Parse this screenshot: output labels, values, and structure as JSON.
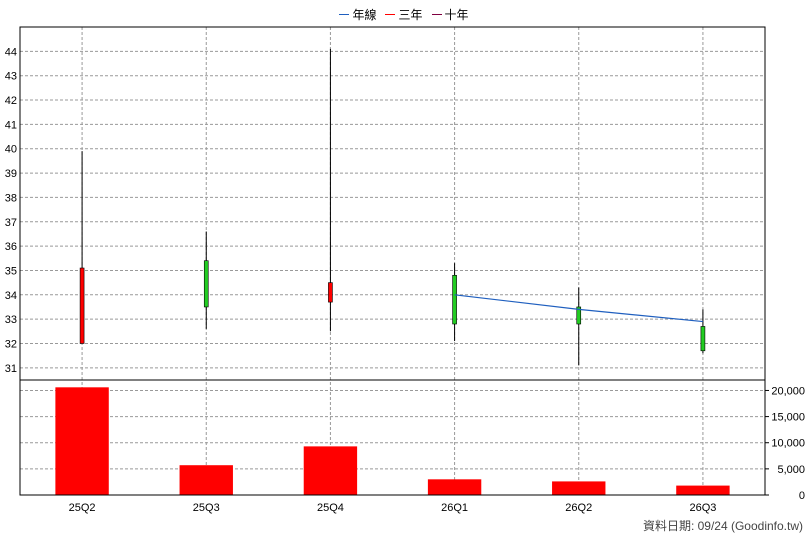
{
  "legend": [
    {
      "label": "年線",
      "color": "#1f5fbf"
    },
    {
      "label": "三年",
      "color": "#ff0000"
    },
    {
      "label": "十年",
      "color": "#800040"
    }
  ],
  "footer": {
    "note": "資料日期: 09/24  (Goodinfo.tw)"
  },
  "colors": {
    "up": "#ff0000",
    "down": "#22cc22",
    "volume": "#ff0000",
    "line": "#1f5fbf",
    "grid": "#999999"
  },
  "chart_data": [
    {
      "type": "candlestick",
      "categories": [
        "25Q2",
        "25Q3",
        "25Q4",
        "26Q1",
        "26Q2",
        "26Q3"
      ],
      "ohlc": [
        {
          "open": 32.0,
          "high": 39.9,
          "low": 32.0,
          "close": 35.1
        },
        {
          "open": 35.4,
          "high": 36.6,
          "low": 32.6,
          "close": 33.5
        },
        {
          "open": 33.7,
          "high": 44.1,
          "low": 32.5,
          "close": 34.5
        },
        {
          "open": 34.8,
          "high": 35.3,
          "low": 32.1,
          "close": 32.8
        },
        {
          "open": 33.5,
          "high": 34.3,
          "low": 31.1,
          "close": 32.8
        },
        {
          "open": 32.7,
          "high": 33.4,
          "low": 31.6,
          "close": 31.7
        }
      ],
      "series": [
        {
          "name": "年線",
          "values": [
            null,
            null,
            null,
            34.0,
            33.4,
            32.9
          ]
        }
      ],
      "yticks": [
        31,
        32,
        33,
        34,
        35,
        36,
        37,
        38,
        39,
        40,
        41,
        42,
        43,
        44
      ],
      "ylim": [
        30.5,
        45.0
      ],
      "grid": true
    },
    {
      "type": "bar",
      "categories": [
        "25Q2",
        "25Q3",
        "25Q4",
        "26Q1",
        "26Q2",
        "26Q3"
      ],
      "values": [
        20600,
        5700,
        9300,
        3000,
        2600,
        1800
      ],
      "yticks": [
        0,
        5000,
        10000,
        15000,
        20000
      ],
      "ytick_labels": [
        "0",
        "5,000",
        "10,000",
        "15,000",
        "20,000"
      ],
      "ylim": [
        0,
        22000
      ],
      "grid": true
    }
  ]
}
